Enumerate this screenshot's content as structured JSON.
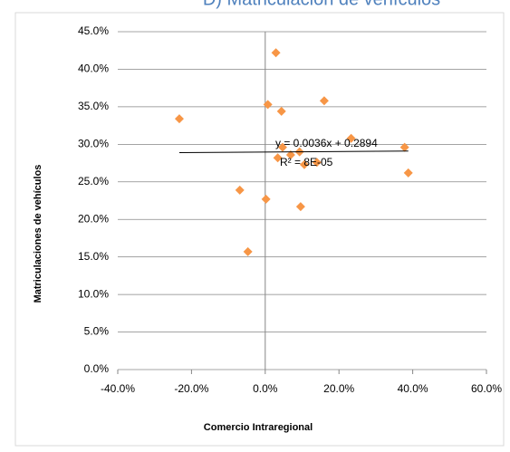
{
  "chart_data": {
    "type": "scatter",
    "title": "D)  Matriculación de vehículos",
    "x_label": "Comercio Intraregional",
    "y_label": "Matriculaciones de vehículos",
    "series": [
      {
        "name": "Matriculaciones",
        "color": "#f79646",
        "x": [
          2.9,
          -23.3,
          0.7,
          4.4,
          16.0,
          23.3,
          37.8,
          38.8,
          3.4,
          6.9,
          9.3,
          14.0,
          10.6,
          4.7,
          -6.9,
          0.2,
          9.6,
          -4.7
        ],
        "values": [
          42.2,
          33.4,
          35.3,
          34.4,
          35.8,
          30.8,
          29.6,
          26.2,
          28.2,
          28.6,
          29.0,
          27.6,
          27.3,
          29.6,
          23.9,
          22.7,
          21.7,
          15.7
        ]
      }
    ],
    "trendline": {
      "x": [
        -23.3,
        38.8
      ],
      "y": [
        28.9,
        29.1
      ],
      "color": "#000000"
    },
    "annotations": [
      "y = 0.0036x + 0.2894",
      "R² = 8E-05"
    ],
    "xlim": [
      -40,
      60
    ],
    "xticks": [
      {
        "value": -40,
        "label": "-40.0%"
      },
      {
        "value": -20,
        "label": "-20.0%"
      },
      {
        "value": 0,
        "label": "0.0%"
      },
      {
        "value": 20,
        "label": "20.0%"
      },
      {
        "value": 40,
        "label": "40.0%"
      },
      {
        "value": 60,
        "label": "60.0%"
      }
    ],
    "ylim": [
      0,
      45
    ],
    "yticks": [
      {
        "value": 0,
        "label": "0.0%"
      },
      {
        "value": 5,
        "label": "5.0%"
      },
      {
        "value": 10,
        "label": "10.0%"
      },
      {
        "value": 15,
        "label": "15.0%"
      },
      {
        "value": 20,
        "label": "20.0%"
      },
      {
        "value": 25,
        "label": "25.0%"
      },
      {
        "value": 30,
        "label": "30.0%"
      },
      {
        "value": 35,
        "label": "35.0%"
      },
      {
        "value": 40,
        "label": "40.0%"
      },
      {
        "value": 45,
        "label": "45.0%"
      }
    ],
    "grid": true
  }
}
